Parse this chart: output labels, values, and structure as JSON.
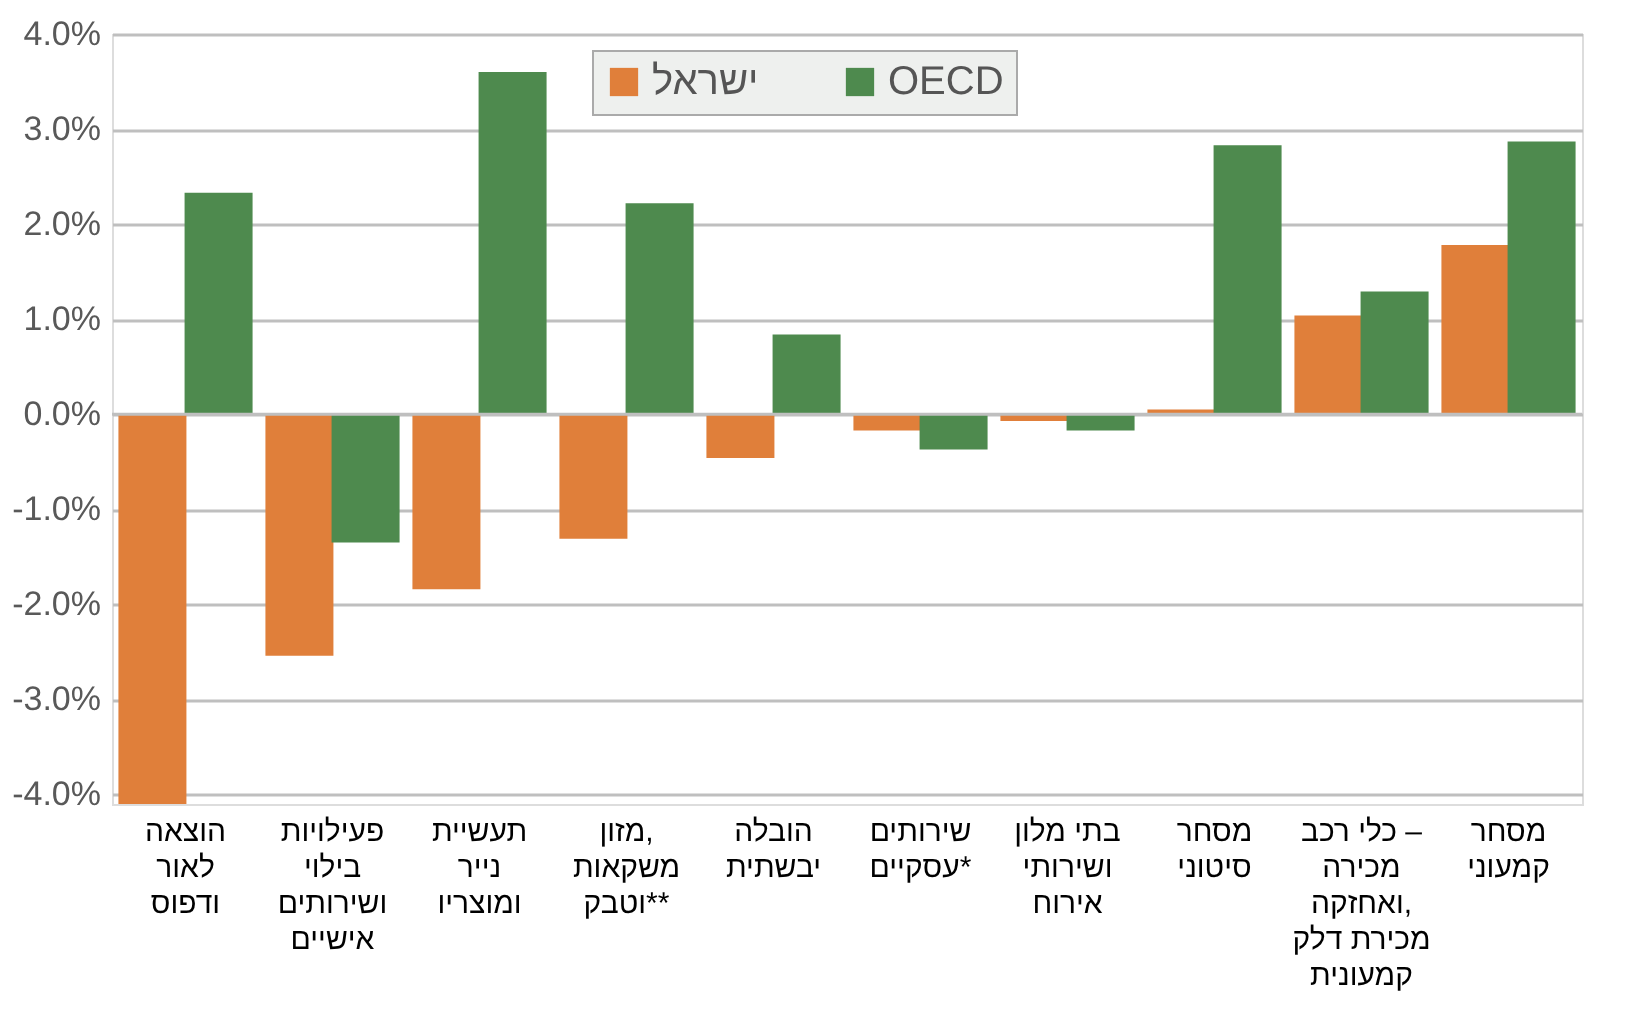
{
  "chart_data": {
    "type": "bar",
    "categories": [
      "הוצאה לאור ודפוס",
      "פעילויות בילוי ושירותים אישיים",
      "תעשיית נייר ומוצריו",
      "מזון, משקאות וטבק**",
      "הובלה יבשתית",
      "שירותים עסקיים*",
      "בתי מלון ושירותי אירוח",
      "מסחר סיטוני",
      "כלי רכב – מכירה ואחזקה, מכירת דלק קמעונית",
      "מסחר קמעוני"
    ],
    "series": [
      {
        "name": "ישראל",
        "color": "#e07f3a",
        "values": [
          -4.1,
          -2.54,
          -1.84,
          -1.31,
          -0.46,
          -0.17,
          -0.07,
          0.05,
          1.04,
          1.78
        ]
      },
      {
        "name": "OECD",
        "color": "#4e8a4e",
        "values": [
          2.33,
          -1.35,
          3.6,
          2.22,
          0.84,
          -0.37,
          -0.17,
          2.83,
          1.29,
          2.87
        ]
      }
    ],
    "ylim": [
      -4.1,
      4.0
    ],
    "yticks": [
      {
        "value": -4,
        "label": "-4.0%"
      },
      {
        "value": -3,
        "label": "-3.0%"
      },
      {
        "value": -2,
        "label": "-2.0%"
      },
      {
        "value": -1,
        "label": "-1.0%"
      },
      {
        "value": 0,
        "label": "0.0%"
      },
      {
        "value": 1,
        "label": "1.0%"
      },
      {
        "value": 2,
        "label": "2.0%"
      },
      {
        "value": 3,
        "label": "3.0%"
      },
      {
        "value": 4,
        "label": "4.0%"
      }
    ],
    "grid": "y",
    "legend": "top"
  }
}
